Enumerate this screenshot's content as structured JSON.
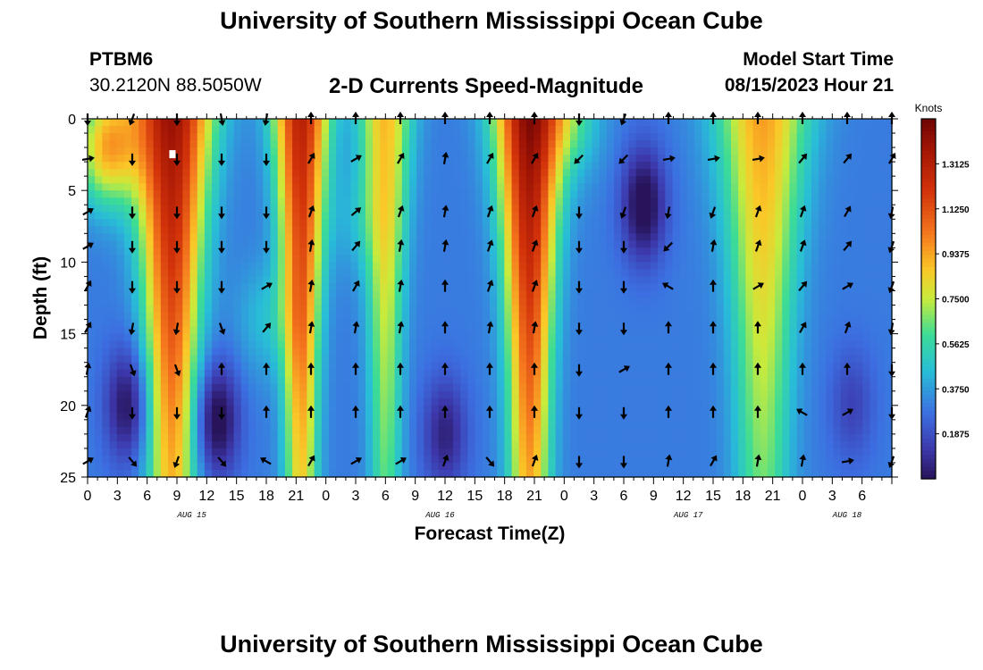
{
  "header": {
    "title": "University of Southern Mississippi Ocean Cube",
    "station_id": "PTBM6",
    "station_position": "30.2120N  88.5050W",
    "model_start_label": "Model Start Time",
    "model_start_time": "08/15/2023 Hour 21"
  },
  "footer": {
    "title": "University of Southern Mississippi Ocean Cube"
  },
  "colors": {
    "arrow": "#000000",
    "marker": "#ffffff"
  },
  "chart_data": {
    "type": "heatmap",
    "title": "2-D Currents Speed-Magnitude",
    "xlabel": "Forecast Time(Z)",
    "ylabel": "Depth (ft)",
    "x_range_hours": [
      0,
      81
    ],
    "ylim": [
      0,
      25
    ],
    "y_ticks": [
      0,
      5,
      10,
      15,
      20,
      25
    ],
    "x_ticks": [
      {
        "h": 0,
        "label": "0"
      },
      {
        "h": 3,
        "label": "3"
      },
      {
        "h": 6,
        "label": "6"
      },
      {
        "h": 9,
        "label": "9"
      },
      {
        "h": 12,
        "label": "12"
      },
      {
        "h": 15,
        "label": "15"
      },
      {
        "h": 18,
        "label": "18"
      },
      {
        "h": 21,
        "label": "21"
      },
      {
        "h": 24,
        "label": "0"
      },
      {
        "h": 27,
        "label": "3"
      },
      {
        "h": 30,
        "label": "6"
      },
      {
        "h": 33,
        "label": "9"
      },
      {
        "h": 36,
        "label": "12"
      },
      {
        "h": 39,
        "label": "15"
      },
      {
        "h": 42,
        "label": "18"
      },
      {
        "h": 45,
        "label": "21"
      },
      {
        "h": 48,
        "label": "0"
      },
      {
        "h": 51,
        "label": "3"
      },
      {
        "h": 54,
        "label": "6"
      },
      {
        "h": 57,
        "label": "9"
      },
      {
        "h": 60,
        "label": "12"
      },
      {
        "h": 63,
        "label": "15"
      },
      {
        "h": 66,
        "label": "18"
      },
      {
        "h": 69,
        "label": "21"
      },
      {
        "h": 72,
        "label": "0"
      },
      {
        "h": 75,
        "label": "3"
      },
      {
        "h": 78,
        "label": "6"
      }
    ],
    "day_labels": [
      {
        "h": 10.5,
        "label": "AUG 15"
      },
      {
        "h": 35.5,
        "label": "AUG 16"
      },
      {
        "h": 60.5,
        "label": "AUG 17"
      },
      {
        "h": 76.5,
        "label": "AUG 18"
      }
    ],
    "colorbar": {
      "units": "Knots",
      "min": 0.0,
      "max": 1.5,
      "ticks": [
        "1.3125",
        "1.1250",
        "0.9375",
        "0.7500",
        "0.5625",
        "0.3750",
        "0.1875"
      ],
      "tick_values": [
        1.3125,
        1.125,
        0.9375,
        0.75,
        0.5625,
        0.375,
        0.1875
      ]
    },
    "arrow_depths_ft": [
      0,
      2.8,
      6.5,
      8.9,
      11.7,
      14.6,
      17.5,
      20.5,
      23.9
    ],
    "arrow_hours": [
      0,
      4.5,
      9,
      13.5,
      18,
      22.5,
      27,
      31.5,
      36,
      40.5,
      45,
      49.5,
      54,
      58.5,
      63,
      67.5,
      72,
      76.5,
      81
    ],
    "arrow_directions_deg": [
      [
        180,
        200,
        180,
        170,
        190,
        0,
        0,
        0,
        0,
        0,
        0,
        180,
        200,
        0,
        0,
        0,
        0,
        0,
        0
      ],
      [
        80,
        180,
        180,
        180,
        180,
        30,
        60,
        30,
        10,
        30,
        30,
        225,
        225,
        80,
        80,
        80,
        40,
        40,
        30
      ],
      [
        60,
        180,
        180,
        180,
        180,
        20,
        50,
        20,
        10,
        20,
        20,
        180,
        200,
        190,
        200,
        20,
        20,
        30,
        190
      ],
      [
        60,
        180,
        180,
        180,
        180,
        10,
        40,
        10,
        10,
        20,
        20,
        180,
        180,
        225,
        10,
        20,
        20,
        40,
        200
      ],
      [
        30,
        180,
        180,
        180,
        60,
        10,
        30,
        10,
        0,
        20,
        20,
        180,
        180,
        300,
        0,
        60,
        40,
        60,
        200
      ],
      [
        30,
        190,
        190,
        160,
        40,
        10,
        10,
        10,
        0,
        10,
        10,
        180,
        180,
        0,
        0,
        0,
        30,
        20,
        190
      ],
      [
        10,
        160,
        160,
        0,
        0,
        0,
        0,
        0,
        0,
        0,
        0,
        180,
        60,
        0,
        0,
        0,
        0,
        0,
        180
      ],
      [
        20,
        180,
        180,
        180,
        0,
        0,
        0,
        0,
        0,
        0,
        0,
        180,
        180,
        0,
        0,
        0,
        300,
        60,
        180
      ],
      [
        60,
        140,
        200,
        140,
        300,
        30,
        60,
        60,
        20,
        140,
        20,
        180,
        180,
        10,
        30,
        10,
        10,
        80,
        200
      ]
    ],
    "speed_components": {
      "base": 0.3,
      "hour_profiles": [
        {
          "center_h": 8.5,
          "width_h": 3.5,
          "peak": 1.1
        },
        {
          "center_h": 21.5,
          "width_h": 2.4,
          "peak": 1.0
        },
        {
          "center_h": 30.0,
          "width_h": 2.3,
          "peak": 0.6
        },
        {
          "center_h": 44.5,
          "width_h": 3.0,
          "peak": 1.15
        },
        {
          "center_h": 68.0,
          "width_h": 4.0,
          "peak": 0.65
        }
      ],
      "minima": [
        {
          "h": 4,
          "d": 20,
          "drop": 0.3
        },
        {
          "h": 13,
          "d": 21,
          "drop": 0.35
        },
        {
          "h": 36,
          "d": 22,
          "drop": 0.25
        },
        {
          "h": 56,
          "d": 6,
          "drop": 0.35
        },
        {
          "h": 77,
          "d": 20,
          "drop": 0.15
        }
      ],
      "maxima": [
        {
          "h": 2,
          "d": 2,
          "bump": 0.6
        },
        {
          "h": 18,
          "d": 14,
          "bump": 0.15
        },
        {
          "h": 49,
          "d": 0,
          "bump": 0.2
        },
        {
          "h": 27,
          "d": 7,
          "bump": 0.1
        }
      ]
    }
  }
}
